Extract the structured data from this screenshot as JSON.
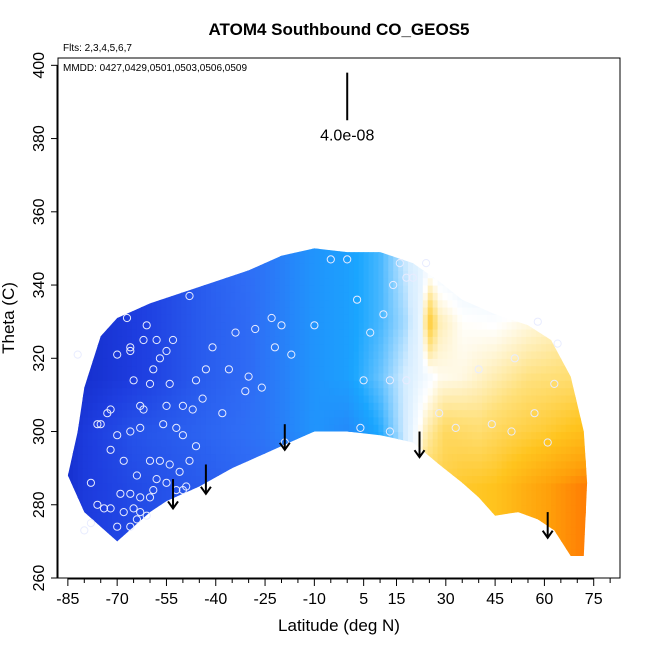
{
  "chart_data": {
    "type": "heatmap",
    "title": "ATOM4 Southbound CO_GEOS5",
    "flights_note": "Flts: 2,3,4,5,6,7",
    "dates_note": "MMDD: 0427,0429,0501,0503,0506,0509",
    "xlabel": "Latitude (deg N)",
    "ylabel": "Theta (C)",
    "xlim": [
      -88,
      83
    ],
    "ylim": [
      260,
      402
    ],
    "xticks": [
      -85,
      -70,
      -55,
      -40,
      -25,
      -10,
      5,
      15,
      30,
      45,
      60,
      75
    ],
    "yticks": [
      260,
      280,
      300,
      320,
      340,
      360,
      380,
      400
    ],
    "scale_label": "4.0e-08",
    "scale_bar": {
      "lat": 0,
      "theta_bottom": 385,
      "theta_top": 398
    },
    "colormap": [
      "#0a1ab4",
      "#1e3ee0",
      "#2f6cf5",
      "#1aa6ff",
      "#d4ecff",
      "#ffffff",
      "#ffe07a",
      "#ffc41e",
      "#ffa00a",
      "#ff6400"
    ],
    "top_boundary": [
      [
        -85,
        288
      ],
      [
        -82,
        300
      ],
      [
        -80,
        312
      ],
      [
        -75,
        326
      ],
      [
        -70,
        331
      ],
      [
        -65,
        333
      ],
      [
        -60,
        335
      ],
      [
        -50,
        338
      ],
      [
        -40,
        341
      ],
      [
        -30,
        344
      ],
      [
        -20,
        348
      ],
      [
        -10,
        350
      ],
      [
        0,
        349
      ],
      [
        10,
        349
      ],
      [
        20,
        346
      ],
      [
        28,
        341
      ],
      [
        35,
        336
      ],
      [
        45,
        332
      ],
      [
        55,
        329
      ],
      [
        62,
        325
      ],
      [
        68,
        315
      ],
      [
        72,
        300
      ],
      [
        73,
        286
      ]
    ],
    "bottom_boundary": [
      [
        -85,
        288
      ],
      [
        -80,
        278
      ],
      [
        -75,
        274
      ],
      [
        -70,
        270
      ],
      [
        -65,
        274
      ],
      [
        -60,
        278
      ],
      [
        -55,
        281
      ],
      [
        -50,
        283
      ],
      [
        -45,
        285
      ],
      [
        -35,
        290
      ],
      [
        -25,
        294
      ],
      [
        -15,
        298
      ],
      [
        -10,
        300
      ],
      [
        0,
        300
      ],
      [
        10,
        299
      ],
      [
        15,
        298
      ],
      [
        20,
        297
      ],
      [
        28,
        291
      ],
      [
        35,
        286
      ],
      [
        40,
        282
      ],
      [
        45,
        277
      ],
      [
        52,
        278
      ],
      [
        58,
        276
      ],
      [
        63,
        273
      ],
      [
        68,
        266
      ],
      [
        72,
        266
      ],
      [
        73,
        286
      ]
    ],
    "field_rows": [
      {
        "theta": 270,
        "values": [
          [
            -88,
            0.05
          ],
          [
            -80,
            0.1
          ],
          [
            -65,
            0.14
          ],
          [
            -45,
            0.18
          ],
          [
            -25,
            0.22
          ],
          [
            -10,
            0.24
          ],
          [
            5,
            0.28
          ],
          [
            15,
            0.32
          ],
          [
            24,
            0.7
          ],
          [
            35,
            0.76
          ],
          [
            45,
            0.78
          ],
          [
            55,
            0.85
          ],
          [
            63,
            0.9
          ],
          [
            72,
            0.95
          ]
        ]
      },
      {
        "theta": 285,
        "values": [
          [
            -88,
            0.05
          ],
          [
            -80,
            0.1
          ],
          [
            -65,
            0.14
          ],
          [
            -45,
            0.18
          ],
          [
            -25,
            0.22
          ],
          [
            -10,
            0.24
          ],
          [
            5,
            0.28
          ],
          [
            15,
            0.32
          ],
          [
            24,
            0.7
          ],
          [
            35,
            0.76
          ],
          [
            45,
            0.78
          ],
          [
            55,
            0.85
          ],
          [
            63,
            0.9
          ],
          [
            72,
            0.95
          ]
        ]
      },
      {
        "theta": 300,
        "values": [
          [
            -88,
            0.05
          ],
          [
            -80,
            0.1
          ],
          [
            -65,
            0.16
          ],
          [
            -45,
            0.2
          ],
          [
            -25,
            0.24
          ],
          [
            -10,
            0.3
          ],
          [
            0,
            0.28
          ],
          [
            10,
            0.34
          ],
          [
            18,
            0.45
          ],
          [
            24,
            0.62
          ],
          [
            30,
            0.7
          ],
          [
            40,
            0.68
          ],
          [
            50,
            0.72
          ],
          [
            60,
            0.75
          ],
          [
            72,
            0.8
          ]
        ]
      },
      {
        "theta": 315,
        "values": [
          [
            -88,
            0.05
          ],
          [
            -75,
            0.08
          ],
          [
            -60,
            0.12
          ],
          [
            -45,
            0.18
          ],
          [
            -30,
            0.22
          ],
          [
            -20,
            0.26
          ],
          [
            -10,
            0.3
          ],
          [
            0,
            0.32
          ],
          [
            10,
            0.38
          ],
          [
            18,
            0.45
          ],
          [
            22,
            0.5
          ],
          [
            28,
            0.57
          ],
          [
            35,
            0.58
          ],
          [
            45,
            0.62
          ],
          [
            55,
            0.66
          ],
          [
            70,
            0.68
          ]
        ]
      },
      {
        "theta": 330,
        "values": [
          [
            -88,
            0.05
          ],
          [
            -75,
            0.08
          ],
          [
            -60,
            0.12
          ],
          [
            -45,
            0.18
          ],
          [
            -30,
            0.22
          ],
          [
            -20,
            0.26
          ],
          [
            -10,
            0.3
          ],
          [
            0,
            0.32
          ],
          [
            10,
            0.36
          ],
          [
            18,
            0.42
          ],
          [
            22,
            0.48
          ],
          [
            25,
            0.75
          ],
          [
            28,
            0.62
          ],
          [
            35,
            0.56
          ],
          [
            45,
            0.55
          ],
          [
            55,
            0.58
          ],
          [
            70,
            0.62
          ]
        ]
      },
      {
        "theta": 345,
        "values": [
          [
            -88,
            0.08
          ],
          [
            -70,
            0.1
          ],
          [
            -55,
            0.14
          ],
          [
            -40,
            0.2
          ],
          [
            -25,
            0.24
          ],
          [
            -10,
            0.3
          ],
          [
            0,
            0.32
          ],
          [
            10,
            0.36
          ],
          [
            18,
            0.44
          ],
          [
            25,
            0.52
          ],
          [
            35,
            0.48
          ],
          [
            45,
            0.46
          ],
          [
            60,
            0.5
          ],
          [
            70,
            0.55
          ]
        ]
      },
      {
        "theta": 352,
        "values": [
          [
            -88,
            0.08
          ],
          [
            -70,
            0.1
          ],
          [
            -55,
            0.14
          ],
          [
            -40,
            0.2
          ],
          [
            -25,
            0.24
          ],
          [
            -10,
            0.3
          ],
          [
            0,
            0.32
          ],
          [
            10,
            0.36
          ],
          [
            18,
            0.44
          ],
          [
            25,
            0.52
          ],
          [
            35,
            0.48
          ],
          [
            45,
            0.46
          ],
          [
            60,
            0.5
          ],
          [
            70,
            0.55
          ]
        ]
      }
    ],
    "samples": [
      [
        -82,
        321
      ],
      [
        -78,
        286
      ],
      [
        -76,
        302
      ],
      [
        -72,
        295
      ],
      [
        -70,
        321
      ],
      [
        -67,
        331
      ],
      [
        -66,
        323
      ],
      [
        -66,
        322
      ],
      [
        -65,
        314
      ],
      [
        -62,
        325
      ],
      [
        -61,
        329
      ],
      [
        -58,
        325
      ],
      [
        -60,
        313
      ],
      [
        -57,
        320
      ],
      [
        -55,
        322
      ],
      [
        -54,
        313
      ],
      [
        -53,
        325
      ],
      [
        -48,
        337
      ],
      [
        -46,
        314
      ],
      [
        -44,
        309
      ],
      [
        -47,
        306
      ],
      [
        -43,
        317
      ],
      [
        -41,
        323
      ],
      [
        -38,
        305
      ],
      [
        -36,
        317
      ],
      [
        -34,
        327
      ],
      [
        -31,
        311
      ],
      [
        -30,
        315
      ],
      [
        -28,
        328
      ],
      [
        -26,
        312
      ],
      [
        -23,
        331
      ],
      [
        -22,
        323
      ],
      [
        -20,
        329
      ],
      [
        -17,
        321
      ],
      [
        -19,
        297
      ],
      [
        -10,
        329
      ],
      [
        -5,
        347
      ],
      [
        0,
        347
      ],
      [
        3,
        336
      ],
      [
        5,
        314
      ],
      [
        4,
        301
      ],
      [
        7,
        327
      ],
      [
        11,
        332
      ],
      [
        13,
        314
      ],
      [
        13,
        300
      ],
      [
        14,
        340
      ],
      [
        16,
        346
      ],
      [
        18,
        342
      ],
      [
        18,
        314
      ],
      [
        20,
        342
      ],
      [
        24,
        346
      ],
      [
        28,
        305
      ],
      [
        33,
        301
      ],
      [
        40,
        317
      ],
      [
        44,
        302
      ],
      [
        50,
        300
      ],
      [
        51,
        320
      ],
      [
        57,
        305
      ],
      [
        58,
        330
      ],
      [
        61,
        297
      ],
      [
        63,
        313
      ],
      [
        64,
        324
      ],
      [
        -63,
        307
      ],
      [
        -62,
        306
      ],
      [
        -66,
        300
      ],
      [
        -68,
        292
      ],
      [
        -60,
        292
      ],
      [
        -64,
        288
      ],
      [
        -59,
        284
      ],
      [
        -60,
        282
      ],
      [
        -63,
        301
      ],
      [
        -59,
        317
      ],
      [
        -56,
        302
      ],
      [
        -52,
        301
      ],
      [
        -50,
        299
      ],
      [
        -50,
        307
      ],
      [
        -55,
        307
      ],
      [
        -72,
        279
      ],
      [
        -70,
        274
      ],
      [
        -74,
        279
      ],
      [
        -75,
        302
      ],
      [
        -73,
        305
      ],
      [
        -69,
        283
      ],
      [
        -66,
        283
      ],
      [
        -68,
        278
      ],
      [
        -63,
        282
      ],
      [
        -51,
        289
      ],
      [
        -50,
        284
      ],
      [
        -54,
        291
      ],
      [
        -57,
        292
      ],
      [
        -72,
        306
      ],
      [
        -70,
        299
      ],
      [
        -49,
        285
      ],
      [
        -52,
        284
      ],
      [
        -55,
        286
      ],
      [
        -58,
        287
      ],
      [
        -48,
        292
      ],
      [
        -46,
        296
      ],
      [
        -76,
        280
      ],
      [
        -78,
        275
      ],
      [
        -80,
        273
      ],
      [
        -66,
        274
      ],
      [
        -64,
        276
      ],
      [
        -65,
        279
      ],
      [
        -63,
        278
      ],
      [
        -61,
        277
      ]
    ],
    "arrows": [
      {
        "lat": -53,
        "theta_top": 287,
        "theta_bottom": 279
      },
      {
        "lat": -43,
        "theta_top": 291,
        "theta_bottom": 283
      },
      {
        "lat": -19,
        "theta_top": 302,
        "theta_bottom": 295
      },
      {
        "lat": 22,
        "theta_top": 300,
        "theta_bottom": 293
      },
      {
        "lat": 61,
        "theta_top": 278,
        "theta_bottom": 271
      }
    ],
    "grid": false,
    "legend": "none"
  }
}
